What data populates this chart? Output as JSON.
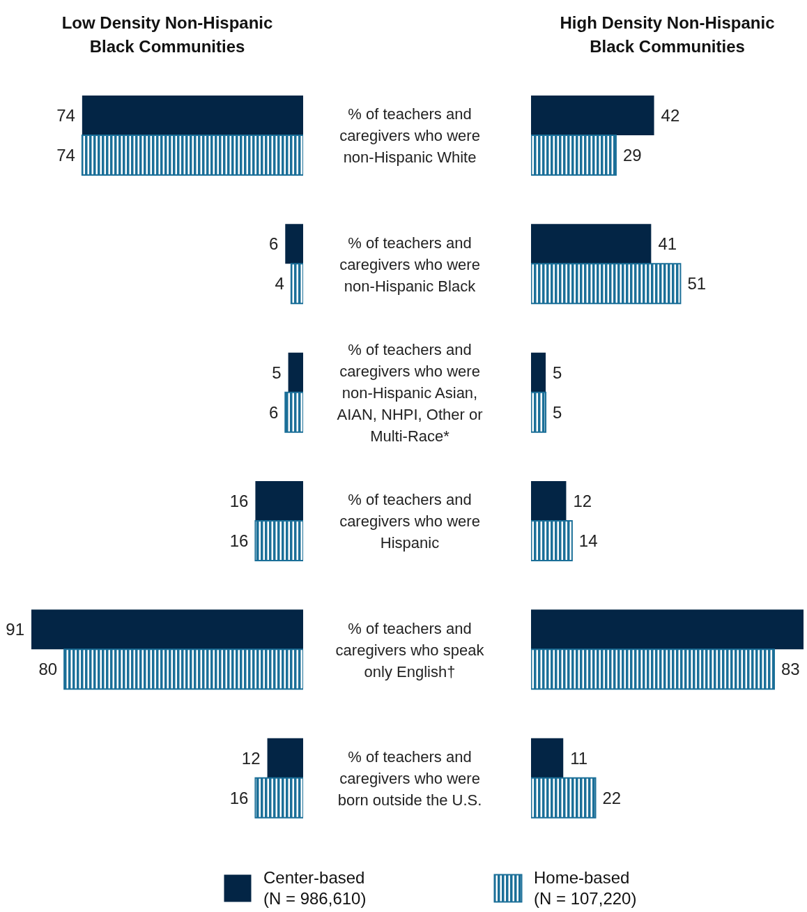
{
  "chart_data": [
    {
      "type": "bar",
      "orientation": "horizontal",
      "title": "Low Density Non-Hispanic Black Communities",
      "categories": [
        "% of teachers and caregivers who were non-Hispanic White",
        "% of teachers and caregivers who were non-Hispanic Black",
        "% of teachers and caregivers who were non-Hispanic Asian, AIAN, NHPI, Other or Multi-Race*",
        "% of teachers and caregivers who were Hispanic",
        "% of teachers and caregivers who speak only English†",
        "% of teachers and caregivers who were born outside the U.S."
      ],
      "series": [
        {
          "name": "Center-based (N = 986,610)",
          "color": "#032545",
          "values": [
            74,
            6,
            5,
            16,
            91,
            12
          ]
        },
        {
          "name": "Home-based (N = 107,220)",
          "color": "#1b6f98",
          "values": [
            74,
            4,
            6,
            16,
            80,
            16
          ]
        }
      ],
      "data_labels": true,
      "legend": "bottom",
      "tick_labels": "y",
      "grid": false
    },
    {
      "type": "bar",
      "orientation": "horizontal",
      "title": "High Density Non-Hispanic Black Communities",
      "categories": [
        null,
        null,
        null,
        null,
        null,
        null
      ],
      "series": [
        {
          "color": "#032545",
          "values": [
            42,
            41,
            5,
            12,
            93,
            11
          ],
          "value_labels": [
            "42",
            "41",
            "5",
            "12",
            null,
            "11"
          ]
        },
        {
          "color": "#1b6f98",
          "values": [
            29,
            51,
            5,
            14,
            83,
            22
          ],
          "value_labels": [
            "29",
            "51",
            "5",
            "14",
            "83",
            "22"
          ]
        }
      ],
      "tick_labels": false,
      "grid": false
    }
  ]
}
